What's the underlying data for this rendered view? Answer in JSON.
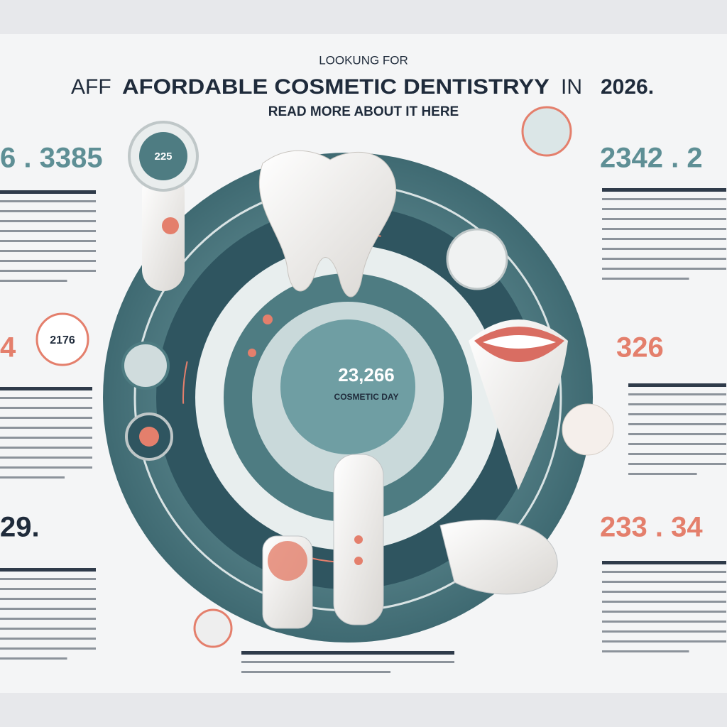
{
  "header": {
    "eyebrow": "LOOKUNG FOR",
    "title_lead": "AFF",
    "title": "AFORDABLE COSMETIC DENTISTRYY",
    "title_in": "IN",
    "title_year": "2026.",
    "subtitle": "READ MORE ABOUT IT HERE"
  },
  "stats": {
    "left_top": "6 . 3385",
    "left_badge": "2176",
    "left_mid": "4",
    "left_bottom": "29.",
    "right_top": "2342 . 2",
    "right_mid": "326",
    "right_bottom": "233 . 34"
  },
  "center": {
    "badge_number": "23,266",
    "badge_caption": "COSMETIC DAY",
    "device_dial": "225"
  }
}
